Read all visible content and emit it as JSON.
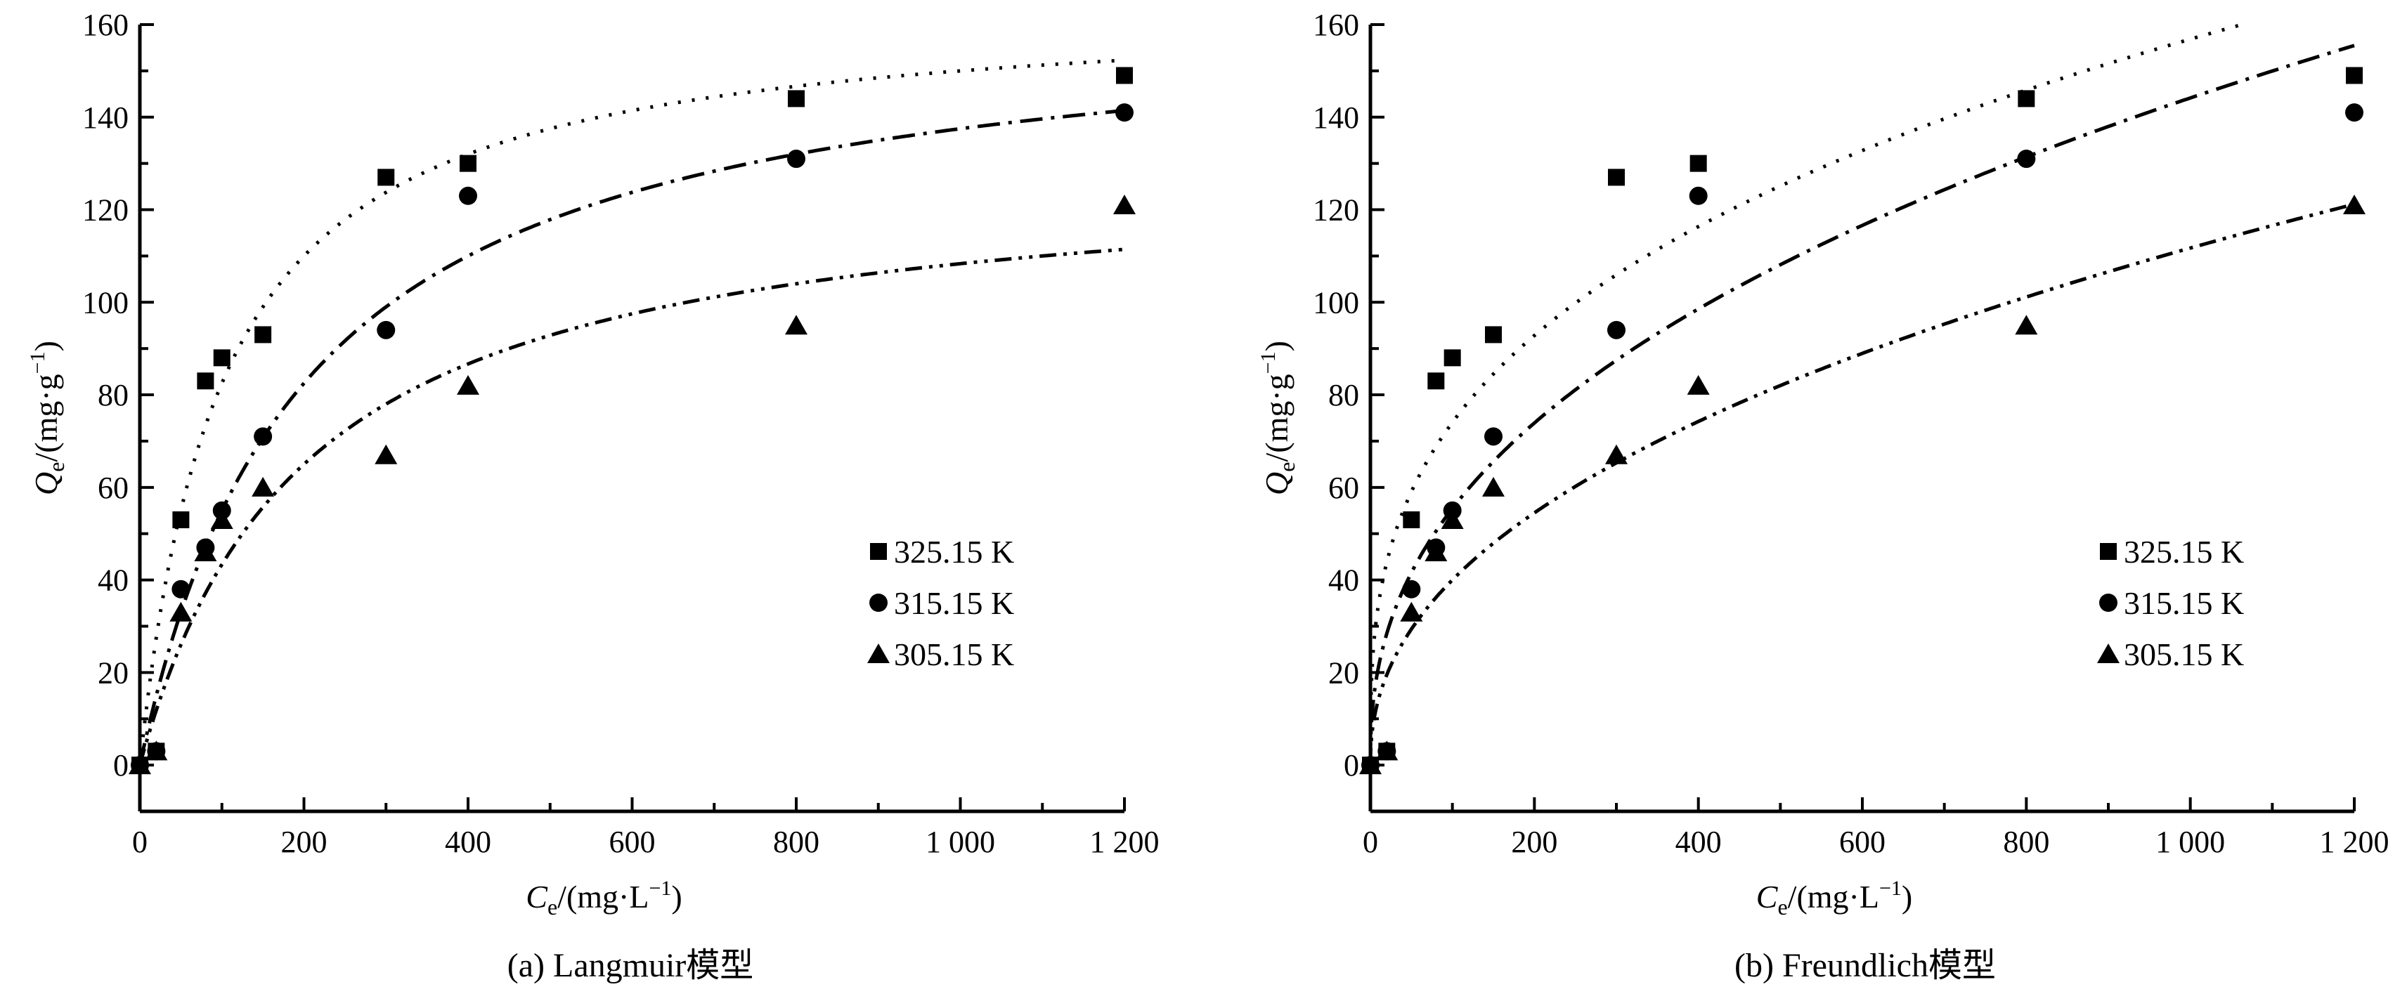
{
  "chart_data": [
    {
      "type": "scatter",
      "model": "Langmuir",
      "caption": "(a)  Langmuir模型",
      "xlabel": {
        "var": "C",
        "sub": "e",
        "unit": "/(mg·L",
        "sup": "−1",
        "close": ")"
      },
      "ylabel": {
        "var": "Q",
        "sub": "e",
        "unit": "/(mg·g",
        "sup": "−1",
        "close": ")"
      },
      "xlim": [
        0,
        1200
      ],
      "ylim": [
        -10,
        160
      ],
      "xticks": [
        0,
        200,
        400,
        600,
        800,
        1000,
        1200
      ],
      "xtick_labels": [
        "0",
        "200",
        "400",
        "600",
        "800",
        "1 000",
        "1 200"
      ],
      "yticks": [
        0,
        20,
        40,
        60,
        80,
        100,
        120,
        140,
        160
      ],
      "ytick_labels": [
        "0",
        "20",
        "40",
        "60",
        "80",
        "100",
        "120",
        "140",
        "160"
      ],
      "legend_position": "lower-right",
      "series": [
        {
          "name": "325.15 K",
          "marker": "square",
          "fit_style": "dotted",
          "x": [
            0,
            20,
            50,
            80,
            100,
            150,
            300,
            400,
            800,
            1200
          ],
          "y": [
            0,
            3,
            53,
            83,
            88,
            93,
            127,
            130,
            144,
            149
          ],
          "fit": {
            "Qm": 165,
            "KL": 0.01
          }
        },
        {
          "name": "315.15 K",
          "marker": "circle",
          "fit_style": "dash-dot",
          "x": [
            0,
            20,
            50,
            80,
            100,
            150,
            300,
            400,
            800,
            1200
          ],
          "y": [
            0,
            3,
            38,
            47,
            55,
            71,
            94,
            123,
            131,
            141
          ],
          "fit": {
            "Qm": 165,
            "KL": 0.005
          }
        },
        {
          "name": "305.15 K",
          "marker": "triangle",
          "fit_style": "dash-dot-dot",
          "x": [
            0,
            20,
            50,
            80,
            100,
            150,
            300,
            400,
            800,
            1200
          ],
          "y": [
            0,
            3,
            33,
            46,
            53,
            60,
            67,
            82,
            95,
            121
          ],
          "fit": {
            "Qm": 130,
            "KL": 0.005
          }
        }
      ]
    },
    {
      "type": "scatter",
      "model": "Freundlich",
      "caption": "(b)  Freundlich模型",
      "xlabel": {
        "var": "C",
        "sub": "e",
        "unit": "/(mg·L",
        "sup": "−1",
        "close": ")"
      },
      "ylabel": {
        "var": "Q",
        "sub": "e",
        "unit": "/(mg·g",
        "sup": "−1",
        "close": ")"
      },
      "xlim": [
        0,
        1200
      ],
      "ylim": [
        -10,
        160
      ],
      "xticks": [
        0,
        200,
        400,
        600,
        800,
        1000,
        1200
      ],
      "xtick_labels": [
        "0",
        "200",
        "400",
        "600",
        "800",
        "1 000",
        "1 200"
      ],
      "yticks": [
        0,
        20,
        40,
        60,
        80,
        100,
        120,
        140,
        160
      ],
      "ytick_labels": [
        "0",
        "20",
        "40",
        "60",
        "80",
        "100",
        "120",
        "140",
        "160"
      ],
      "legend_position": "lower-right",
      "series": [
        {
          "name": "325.15 K",
          "marker": "square",
          "fit_style": "dotted",
          "x": [
            0,
            20,
            50,
            80,
            100,
            150,
            300,
            400,
            800,
            1200
          ],
          "y": [
            0,
            3,
            53,
            83,
            88,
            93,
            127,
            130,
            144,
            149
          ],
          "fit": {
            "KF": 16.5,
            "inv_n": 0.326
          }
        },
        {
          "name": "315.15 K",
          "marker": "circle",
          "fit_style": "dash-dot",
          "x": [
            0,
            20,
            50,
            80,
            100,
            150,
            300,
            400,
            800,
            1200
          ],
          "y": [
            0,
            3,
            38,
            47,
            55,
            71,
            94,
            123,
            131,
            141
          ],
          "fit": {
            "KF": 8.2,
            "inv_n": 0.415
          }
        },
        {
          "name": "305.15 K",
          "marker": "triangle",
          "fit_style": "dash-dot-dot",
          "x": [
            0,
            20,
            50,
            80,
            100,
            150,
            300,
            400,
            800,
            1200
          ],
          "y": [
            0,
            3,
            33,
            46,
            53,
            60,
            67,
            82,
            95,
            121
          ],
          "fit": {
            "KF": 5.13,
            "inv_n": 0.446
          }
        }
      ]
    }
  ]
}
